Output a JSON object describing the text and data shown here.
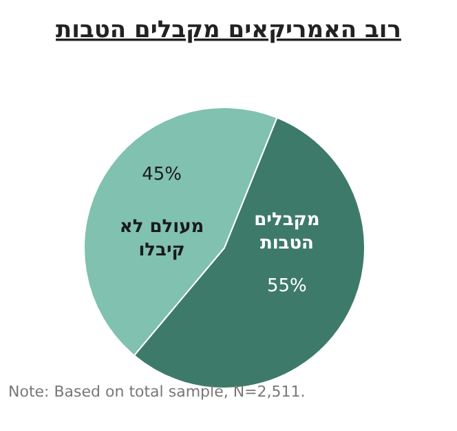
{
  "chart_data": {
    "type": "pie",
    "title": "רוב האמריקאים מקבלים הטבות",
    "categories": [
      "מקבלים\nהטבות",
      "מעולם לא\nקיבלו"
    ],
    "values": [
      55,
      45
    ],
    "colors": [
      "#3e7a6a",
      "#80c1af"
    ],
    "value_labels": [
      "55%",
      "45%"
    ],
    "annotations": [
      "Note: Based on total sample, N=2,511."
    ]
  }
}
